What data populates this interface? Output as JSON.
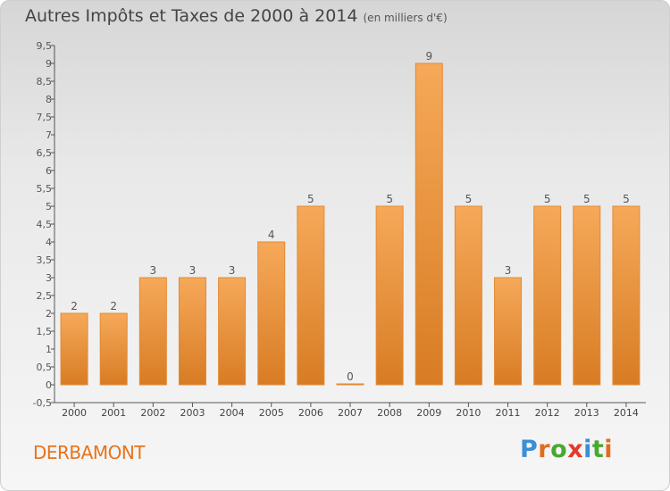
{
  "header": {
    "title": "Autres Impôts et Taxes de 2000 à 2014",
    "unit": "(en milliers d'€)"
  },
  "footer": {
    "commune": "DERBAMONT",
    "brand": "Proxiti"
  },
  "colors": {
    "bar_top": "#f6a959",
    "bar_bottom": "#d87c24",
    "bar_border": "#e38a35",
    "commune_text": "#e8731a",
    "brand_letters": [
      "#3a8fd6",
      "#e36c1e",
      "#4aa832",
      "#e33a2c",
      "#3a8fd6",
      "#4aa832",
      "#e36c1e"
    ]
  },
  "chart_data": {
    "type": "bar",
    "title": "Autres Impôts et Taxes de 2000 à 2014",
    "subtitle": "(en milliers d'€)",
    "xlabel": "",
    "ylabel": "",
    "categories": [
      "2000",
      "2001",
      "2002",
      "2003",
      "2004",
      "2005",
      "2006",
      "2007",
      "2008",
      "2009",
      "2010",
      "2011",
      "2012",
      "2013",
      "2014"
    ],
    "values": [
      2,
      2,
      3,
      3,
      3,
      4,
      5,
      0,
      5,
      9,
      5,
      3,
      5,
      5,
      5
    ],
    "data_labels": [
      "2",
      "2",
      "3",
      "3",
      "3",
      "4",
      "5",
      "0",
      "5",
      "9",
      "5",
      "3",
      "5",
      "5",
      "5"
    ],
    "ylim": [
      -0.5,
      9.5
    ],
    "yticks": [
      "-0,5",
      "0",
      "0,5",
      "1",
      "1,5",
      "2",
      "2,5",
      "3",
      "3,5",
      "4",
      "4,5",
      "5",
      "5,5",
      "6",
      "6,5",
      "7",
      "7,5",
      "8",
      "8,5",
      "9",
      "9,5"
    ],
    "ytick_values": [
      -0.5,
      0,
      0.5,
      1,
      1.5,
      2,
      2.5,
      3,
      3.5,
      4,
      4.5,
      5,
      5.5,
      6,
      6.5,
      7,
      7.5,
      8,
      8.5,
      9,
      9.5
    ],
    "grid": false,
    "legend": "none"
  }
}
